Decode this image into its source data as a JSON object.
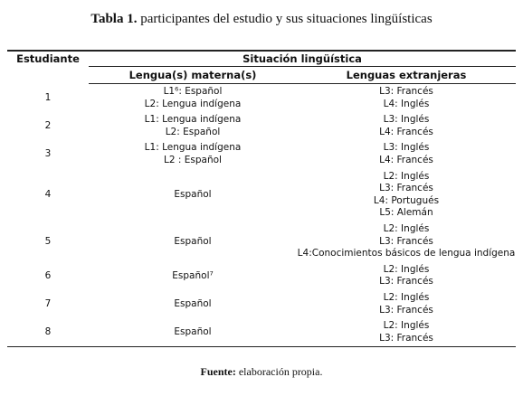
{
  "caption": {
    "label": "Tabla 1.",
    "text": "participantes del estudio y sus situaciones lingüísticas"
  },
  "table": {
    "header": {
      "student": "Estudiante",
      "group": "Situación lingüística",
      "native": "Lengua(s) materna(s)",
      "foreign": "Lenguas extranjeras"
    },
    "rows": [
      {
        "student": "1",
        "native": [
          "L1⁶: Español",
          "L2: Lengua indígena"
        ],
        "foreign": [
          "L3: Francés",
          "L4: Inglés"
        ]
      },
      {
        "student": "2",
        "native": [
          "L1: Lengua indígena",
          "L2: Español"
        ],
        "foreign": [
          "L3: Inglés",
          "L4: Francés"
        ]
      },
      {
        "student": "3",
        "native": [
          "L1: Lengua indígena",
          "L2 : Español"
        ],
        "foreign": [
          "L3: Inglés",
          "L4: Francés"
        ]
      },
      {
        "student": "4",
        "native": [
          "Español"
        ],
        "foreign": [
          "L2: Inglés",
          "L3: Francés",
          "L4: Portugués",
          "L5: Alemán"
        ]
      },
      {
        "student": "5",
        "native": [
          "Español"
        ],
        "foreign": [
          "L2: Inglés",
          "L3: Francés",
          "L4:Conocimientos básicos de lengua indígena"
        ]
      },
      {
        "student": "6",
        "native": [
          "Español⁷"
        ],
        "foreign": [
          "L2: Inglés",
          "L3: Francés"
        ]
      },
      {
        "student": "7",
        "native": [
          "Español"
        ],
        "foreign": [
          "L2: Inglés",
          "L3: Francés"
        ]
      },
      {
        "student": "8",
        "native": [
          "Español"
        ],
        "foreign": [
          "L2: Inglés",
          "L3: Francés"
        ]
      }
    ]
  },
  "source": {
    "label": "Fuente:",
    "text": "elaboración propia."
  }
}
